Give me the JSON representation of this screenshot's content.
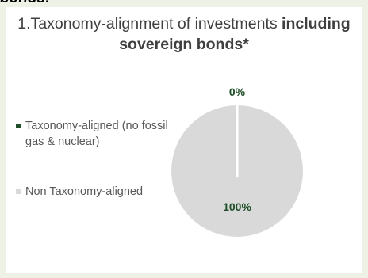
{
  "header": {
    "clipped_text": "bonds:"
  },
  "chart_data": {
    "type": "pie",
    "title": {
      "prefix": "1.Taxonomy-alignment of investments ",
      "bold": "including sovereign bonds*"
    },
    "slices": [
      {
        "label": "Taxonomy-aligned (no fossil gas & nuclear)",
        "value": 0,
        "display": "0%",
        "color": "#1f4e28"
      },
      {
        "label": "Non Taxonomy-aligned",
        "value": 100,
        "display": "100%",
        "color": "#d9d9d9"
      }
    ],
    "legend_position": "left",
    "label_color": "#1f4e28"
  }
}
